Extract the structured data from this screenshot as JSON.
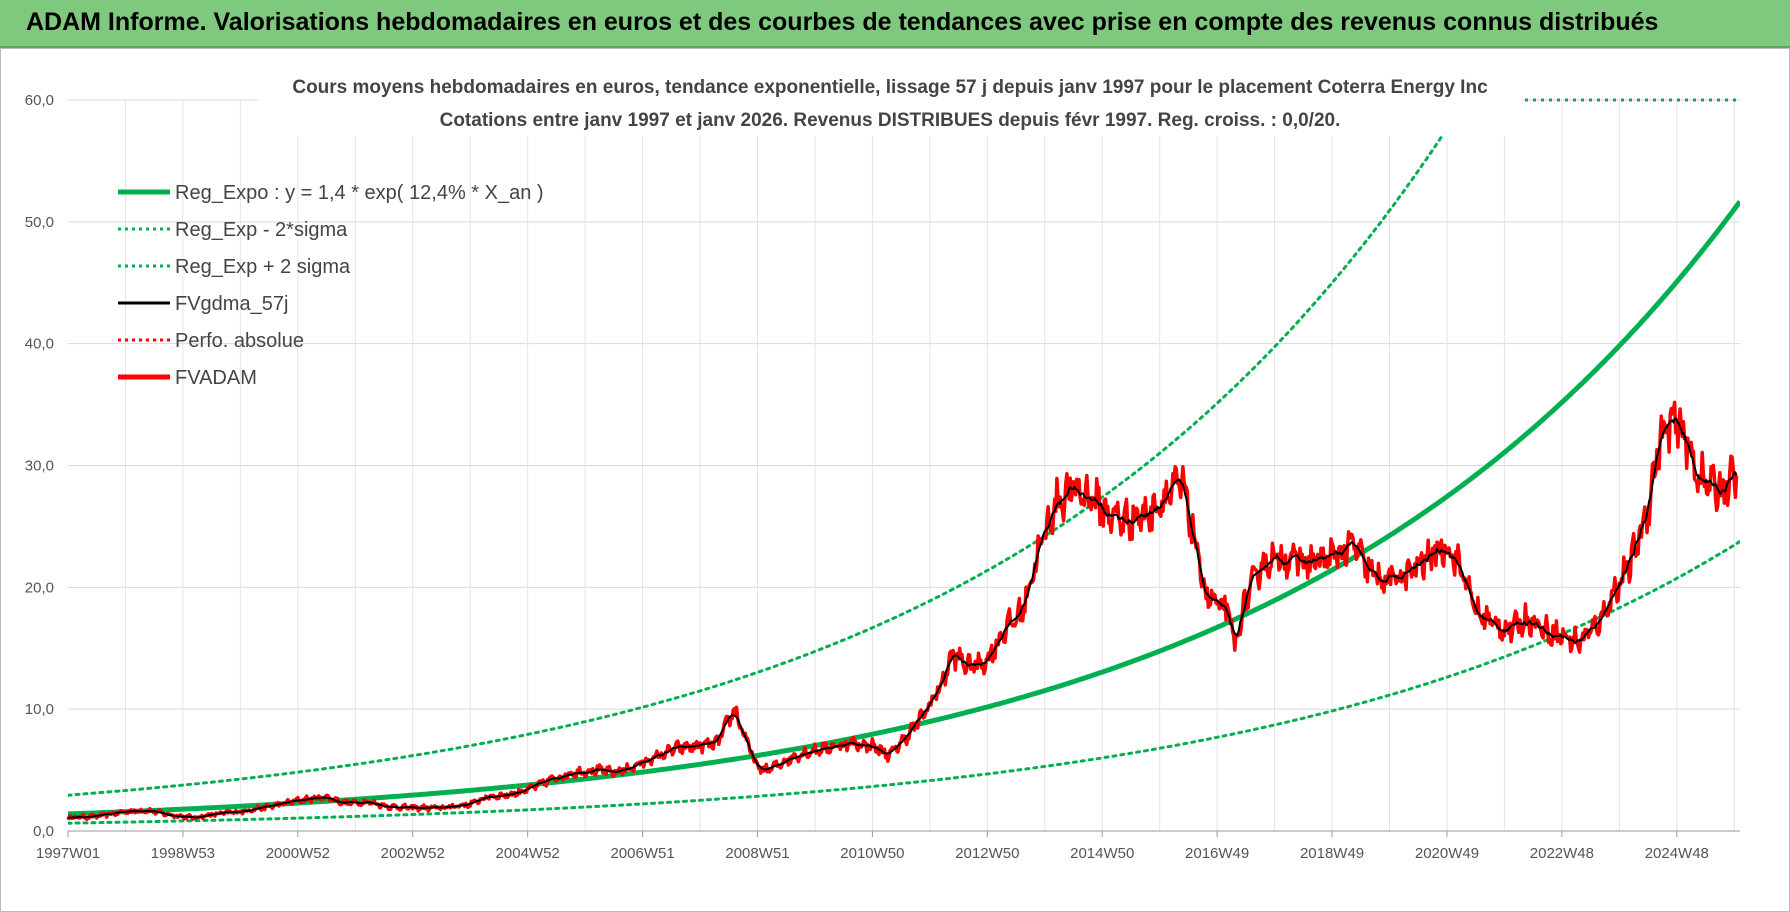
{
  "header": {
    "title": "ADAM Informe. Valorisations hebdomadaires en euros et des courbes de tendances avec prise en compte des revenus connus distribués"
  },
  "chart_data": {
    "type": "line",
    "title": "Cours moyens hebdomadaires en euros, tendance exponentielle, lissage 57 j depuis janv 1997 pour le placement Coterra Energy Inc",
    "subtitle": "Cotations entre janv 1997 et janv 2026. Revenus DISTRIBUES depuis févr 1997. Reg. croiss. : 0,0/20.",
    "xlabel": "",
    "ylabel": "",
    "xlim": [
      1997.0,
      2026.1
    ],
    "ylim": [
      0,
      60
    ],
    "grid": true,
    "legend_position": "top-left",
    "y_ticks": [
      "0,0",
      "10,0",
      "20,0",
      "30,0",
      "40,0",
      "50,0",
      "60,0"
    ],
    "x_ticks": [
      {
        "label": "1997W01",
        "x": 1997.0
      },
      {
        "label": "1998W53",
        "x": 1999.0
      },
      {
        "label": "2000W52",
        "x": 2001.0
      },
      {
        "label": "2002W52",
        "x": 2003.0
      },
      {
        "label": "2004W52",
        "x": 2005.0
      },
      {
        "label": "2006W51",
        "x": 2007.0
      },
      {
        "label": "2008W51",
        "x": 2009.0
      },
      {
        "label": "2010W50",
        "x": 2011.0
      },
      {
        "label": "2012W50",
        "x": 2013.0
      },
      {
        "label": "2014W50",
        "x": 2015.0
      },
      {
        "label": "2016W49",
        "x": 2017.0
      },
      {
        "label": "2018W49",
        "x": 2019.0
      },
      {
        "label": "2020W49",
        "x": 2021.0
      },
      {
        "label": "2022W48",
        "x": 2023.0
      },
      {
        "label": "2024W48",
        "x": 2025.0
      }
    ],
    "regression": {
      "a": 1.4,
      "rate": 0.124,
      "k_low": 0.46,
      "k_high": 2.1
    },
    "series": [
      {
        "name": "Reg_Expo : y = 1,4 * exp( 12,4% *  X_an )",
        "color": "#00b050",
        "style": "solid-thick",
        "kind": "reg"
      },
      {
        "name": "Reg_Exp - 2*sigma",
        "color": "#00b050",
        "style": "dotted",
        "kind": "reg_low"
      },
      {
        "name": "Reg_Exp + 2 sigma",
        "color": "#00b050",
        "style": "dotted",
        "kind": "reg_high"
      },
      {
        "name": "FVgdma_57j",
        "color": "#000000",
        "style": "solid",
        "kind": "smooth"
      },
      {
        "name": "Perfo. absolue",
        "color": "#ff0000",
        "style": "dotted",
        "kind": "perfo"
      },
      {
        "name": "FVADAM",
        "color": "#ff0000",
        "style": "solid-thick",
        "kind": "price"
      }
    ],
    "price_points": [
      [
        1997.0,
        1.1
      ],
      [
        1997.5,
        1.2
      ],
      [
        1998.0,
        1.6
      ],
      [
        1998.4,
        1.7
      ],
      [
        1998.8,
        1.3
      ],
      [
        1999.2,
        1.1
      ],
      [
        1999.6,
        1.4
      ],
      [
        2000.0,
        1.6
      ],
      [
        2000.5,
        2.0
      ],
      [
        2001.0,
        2.5
      ],
      [
        2001.5,
        2.8
      ],
      [
        2001.8,
        2.3
      ],
      [
        2002.2,
        2.4
      ],
      [
        2002.6,
        2.0
      ],
      [
        2003.0,
        1.9
      ],
      [
        2003.5,
        1.9
      ],
      [
        2004.0,
        2.2
      ],
      [
        2004.3,
        2.8
      ],
      [
        2004.7,
        3.0
      ],
      [
        2005.0,
        3.4
      ],
      [
        2005.4,
        4.2
      ],
      [
        2005.8,
        4.8
      ],
      [
        2006.2,
        5.0
      ],
      [
        2006.5,
        4.8
      ],
      [
        2006.8,
        5.2
      ],
      [
        2007.2,
        6.0
      ],
      [
        2007.6,
        6.8
      ],
      [
        2008.0,
        7.0
      ],
      [
        2008.3,
        7.2
      ],
      [
        2008.6,
        10.0
      ],
      [
        2008.8,
        7.5
      ],
      [
        2009.0,
        5.2
      ],
      [
        2009.2,
        5.0
      ],
      [
        2009.5,
        5.8
      ],
      [
        2009.8,
        6.4
      ],
      [
        2010.2,
        6.8
      ],
      [
        2010.6,
        7.2
      ],
      [
        2011.0,
        7.0
      ],
      [
        2011.3,
        6.2
      ],
      [
        2011.6,
        7.8
      ],
      [
        2011.9,
        9.6
      ],
      [
        2012.2,
        12.0
      ],
      [
        2012.4,
        14.5
      ],
      [
        2012.7,
        13.5
      ],
      [
        2013.0,
        14.0
      ],
      [
        2013.3,
        16.5
      ],
      [
        2013.6,
        18.0
      ],
      [
        2013.9,
        23.0
      ],
      [
        2014.2,
        27.0
      ],
      [
        2014.5,
        28.0
      ],
      [
        2014.8,
        27.5
      ],
      [
        2015.1,
        26.0
      ],
      [
        2015.4,
        25.5
      ],
      [
        2015.8,
        26.0
      ],
      [
        2016.1,
        27.5
      ],
      [
        2016.4,
        28.5
      ],
      [
        2016.6,
        24.0
      ],
      [
        2016.8,
        19.5
      ],
      [
        2017.0,
        18.5
      ],
      [
        2017.2,
        18.0
      ],
      [
        2017.3,
        15.0
      ],
      [
        2017.5,
        19.0
      ],
      [
        2017.8,
        22.0
      ],
      [
        2018.2,
        22.5
      ],
      [
        2018.6,
        22.0
      ],
      [
        2019.0,
        22.5
      ],
      [
        2019.4,
        23.5
      ],
      [
        2019.6,
        21.5
      ],
      [
        2019.9,
        20.5
      ],
      [
        2020.3,
        21.0
      ],
      [
        2020.7,
        22.5
      ],
      [
        2021.0,
        23.5
      ],
      [
        2021.3,
        21.0
      ],
      [
        2021.5,
        18.0
      ],
      [
        2021.8,
        17.0
      ],
      [
        2022.1,
        16.5
      ],
      [
        2022.4,
        17.5
      ],
      [
        2022.7,
        16.5
      ],
      [
        2023.0,
        16.0
      ],
      [
        2023.3,
        15.5
      ],
      [
        2023.6,
        16.8
      ],
      [
        2023.9,
        19.5
      ],
      [
        2024.2,
        22.0
      ],
      [
        2024.5,
        26.5
      ],
      [
        2024.7,
        32.0
      ],
      [
        2024.9,
        33.5
      ],
      [
        2025.1,
        33.0
      ],
      [
        2025.3,
        30.0
      ],
      [
        2025.5,
        28.5
      ],
      [
        2025.8,
        28.0
      ],
      [
        2026.0,
        29.0
      ]
    ]
  }
}
